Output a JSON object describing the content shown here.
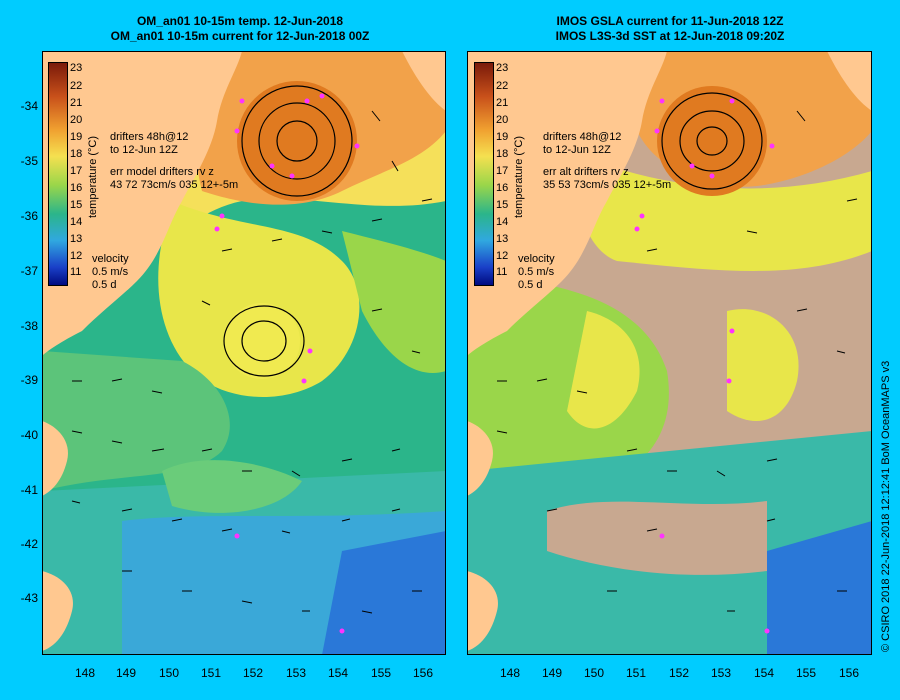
{
  "left_panel": {
    "title_line1": "OM_an01 10-15m temp. 12-Jun-2018",
    "title_line2": "OM_an01 10-15m current for 12-Jun-2018 00Z",
    "drifters_line1": "drifters 48h@12",
    "drifters_line2": "to 12-Jun 12Z",
    "err_line1": "err model drifters rv z",
    "err_line2": "43 72 73cm/s 035 12+-5m"
  },
  "right_panel": {
    "title_line1": "IMOS GSLA current for 11-Jun-2018 12Z",
    "title_line2": "IMOS L3S-3d SST at 12-Jun-2018 09:20Z",
    "drifters_line1": "drifters 48h@12",
    "drifters_line2": "to 12-Jun 12Z",
    "err_line1": "err alt drifters rv z",
    "err_line2": "35 53 73cm/s 035 12+-5m"
  },
  "velocity_legend": {
    "label": "velocity",
    "speed": "0.5 m/s",
    "days": "0.5 d"
  },
  "colorbar": {
    "title": "temperature (°C)",
    "ticks": [
      "23",
      "22",
      "21",
      "20",
      "19",
      "18",
      "17",
      "16",
      "15",
      "14",
      "13",
      "12",
      "11"
    ]
  },
  "y_axis_labels": [
    "-34",
    "-35",
    "-36",
    "-37",
    "-38",
    "-39",
    "-40",
    "-41",
    "-42",
    "-43"
  ],
  "x_axis_labels": [
    "148",
    "149",
    "150",
    "151",
    "152",
    "153",
    "154",
    "155",
    "156"
  ],
  "credit": "© CSIRO 2018   22-Jun-2018 12:12:41 BoM OceanMAPS v3",
  "colors": {
    "background": "#00ccff",
    "land": "#ffc890",
    "drifter": "#ff33ff",
    "missing_data": "#c8a890"
  }
}
